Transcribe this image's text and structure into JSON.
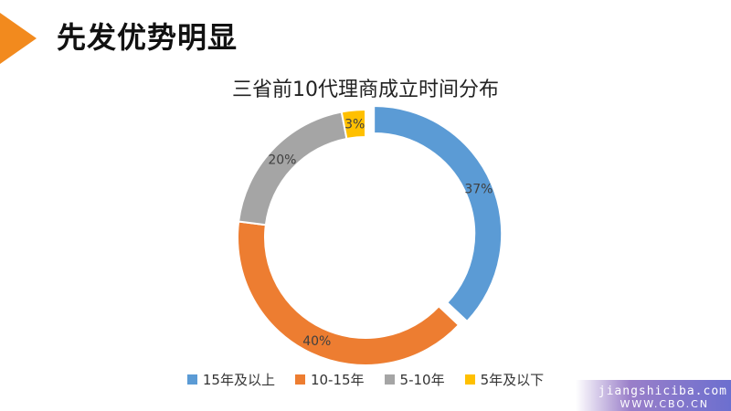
{
  "slide": {
    "title": "先发优势明显",
    "accent_color": "#f28a1e"
  },
  "chart_data": {
    "type": "pie",
    "title": "三省前10代理商成立时间分布",
    "donut": true,
    "slices": [
      {
        "label": "15年及以上",
        "value": 37,
        "value_label": "37%",
        "color": "#5b9bd5",
        "exploded": true
      },
      {
        "label": "10-15年",
        "value": 40,
        "value_label": "40%",
        "color": "#ed7d31",
        "exploded": false
      },
      {
        "label": "5-10年",
        "value": 20,
        "value_label": "20%",
        "color": "#a5a5a5",
        "exploded": false
      },
      {
        "label": "5年及以下",
        "value": 3,
        "value_label": "3%",
        "color": "#ffc000",
        "exploded": false
      }
    ],
    "legend_position": "bottom"
  },
  "watermark": {
    "line1": "jiangshiciba.com",
    "line2": "WWW.CBO.CN"
  }
}
